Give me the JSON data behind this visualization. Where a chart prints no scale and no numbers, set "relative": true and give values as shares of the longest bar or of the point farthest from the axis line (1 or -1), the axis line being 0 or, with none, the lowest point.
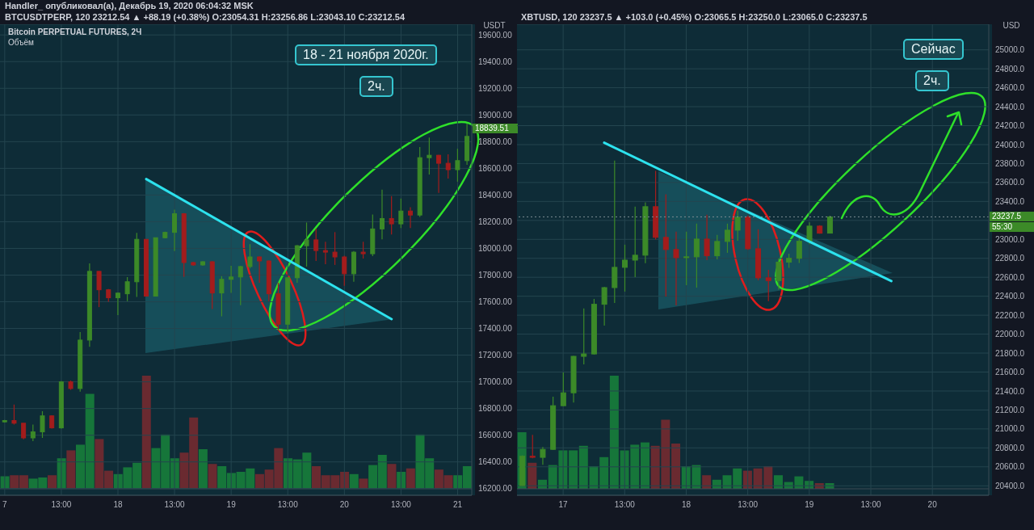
{
  "chart_data": [
    {
      "type": "candlestick",
      "title": "Bitcoin PERPETUAL FUTURES, 2Ч",
      "ylabel": "USDT",
      "categories": [
        "7",
        null,
        null,
        null,
        null,
        null,
        "13:00",
        null,
        null,
        null,
        null,
        null,
        "18",
        null,
        null,
        null,
        null,
        null,
        "13:00",
        null,
        null,
        null,
        null,
        null,
        "19",
        null,
        null,
        null,
        null,
        null,
        "13:00",
        null,
        null,
        null,
        null,
        null,
        "20",
        null,
        null,
        null,
        null,
        null,
        "13:00",
        null,
        null,
        null,
        null,
        null,
        "21",
        null
      ],
      "series": [
        {
          "type": "candlestick",
          "ohlc": [
            [
              16700,
              16715,
              16695,
              16710
            ],
            [
              16710,
              16830,
              16680,
              16690
            ],
            [
              16690,
              16690,
              16570,
              16580
            ],
            [
              16580,
              16680,
              16555,
              16625
            ],
            [
              16625,
              16780,
              16580,
              16745
            ],
            [
              16745,
              16750,
              16650,
              16655
            ],
            [
              16655,
              17005,
              16650,
              17000
            ],
            [
              17000,
              17010,
              16940,
              16950
            ],
            [
              16950,
              17373,
              16927,
              17313
            ],
            [
              17313,
              17888,
              17263,
              17828
            ],
            [
              17828,
              17830,
              17560,
              17690
            ],
            [
              17690,
              17695,
              17600,
              17630
            ],
            [
              17630,
              17670,
              17500,
              17665
            ],
            [
              17660,
              17785,
              17605,
              17750
            ],
            [
              17750,
              18116,
              17636,
              18068
            ],
            [
              18068,
              18070,
              17640,
              17642
            ],
            [
              17642,
              18080,
              17640,
              18080
            ],
            [
              18080,
              18125,
              18075,
              18120
            ],
            [
              18120,
              18290,
              17980,
              18260
            ],
            [
              18260,
              18265,
              17786,
              17894
            ],
            [
              17894,
              17900,
              17870,
              17876
            ],
            [
              17876,
              17905,
              17870,
              17900
            ],
            [
              17900,
              17905,
              17545,
              17666
            ],
            [
              17666,
              17792,
              17491,
              17768
            ],
            [
              17768,
              17870,
              17666,
              17786
            ],
            [
              17786,
              17870,
              17575,
              17864
            ],
            [
              17864,
              18032,
              17850,
              17936
            ],
            [
              17936,
              17940,
              17743,
              17906
            ],
            [
              17906,
              17910,
              17605,
              17660
            ],
            [
              17660,
              17743,
              17383,
              17432
            ],
            [
              17432,
              17785,
              17365,
              17780
            ],
            [
              17780,
              18025,
              17743,
              18020
            ],
            [
              18020,
              18194,
              17864,
              18064
            ],
            [
              18064,
              18146,
              17906,
              17984
            ],
            [
              17984,
              18050,
              17882,
              17972
            ],
            [
              17972,
              18122,
              17876,
              17936
            ],
            [
              17936,
              17945,
              17720,
              17810
            ],
            [
              17810,
              17980,
              17750,
              17972
            ],
            [
              17972,
              18050,
              17924,
              17960
            ],
            [
              17960,
              18254,
              17942,
              18146
            ],
            [
              18146,
              18440,
              18068,
              18224
            ],
            [
              18224,
              18392,
              18104,
              18184
            ],
            [
              18184,
              18374,
              18152,
              18280
            ],
            [
              18280,
              18308,
              18152,
              18250
            ],
            [
              18250,
              18759,
              18236,
              18680
            ],
            [
              18680,
              18831,
              18554,
              18698
            ],
            [
              18698,
              18700,
              18416,
              18638
            ],
            [
              18638,
              18705,
              18524,
              18590
            ],
            [
              18590,
              18747,
              18500,
              18658
            ],
            [
              18658,
              18935,
              18627,
              18839.51
            ]
          ],
          "colors": [
            "#3c8a28",
            "#a31c1c",
            "#a31c1c",
            "#3c8a28",
            "#3c8a28",
            "#a31c1c",
            "#3c8a28",
            "#a31c1c",
            "#3c8a28",
            "#3c8a28",
            "#a31c1c",
            "#a31c1c",
            "#3c8a28",
            "#3c8a28",
            "#3c8a28",
            "#a31c1c",
            "#3c8a28",
            "#3c8a28",
            "#3c8a28",
            "#a31c1c",
            "#a31c1c",
            "#3c8a28",
            "#a31c1c",
            "#3c8a28",
            "#3c8a28",
            "#3c8a28",
            "#3c8a28",
            "#a31c1c",
            "#a31c1c",
            "#a31c1c",
            "#3c8a28",
            "#3c8a28",
            "#3c8a28",
            "#a31c1c",
            "#a31c1c",
            "#a31c1c",
            "#a31c1c",
            "#3c8a28",
            "#a31c1c",
            "#3c8a28",
            "#3c8a28",
            "#a31c1c",
            "#3c8a28",
            "#a31c1c",
            "#3c8a28",
            "#3c8a28",
            "#a31c1c",
            "#a31c1c",
            "#3c8a28",
            "#3c8a28"
          ]
        },
        {
          "type": "line",
          "color": "#2de2ee",
          "values": [
            null,
            null,
            null,
            null,
            null,
            null,
            null,
            null,
            null,
            null,
            null,
            null,
            null,
            null,
            null,
            18520,
            null,
            null,
            null,
            null,
            null,
            null,
            null,
            null,
            null,
            null,
            null,
            null,
            null,
            null,
            null,
            null,
            null,
            null,
            null,
            null,
            null,
            null,
            null,
            null,
            null,
            17470,
            null,
            null,
            null,
            null,
            null,
            null,
            null,
            null
          ]
        }
      ],
      "ylim": [
        16150,
        19680
      ],
      "yticks": [
        {
          "value": 16200,
          "label": "16200.00"
        },
        {
          "value": 16400,
          "label": "16400.00"
        },
        {
          "value": 16600,
          "label": "16600.00"
        },
        {
          "value": 16800,
          "label": "16800.00"
        },
        {
          "value": 17000,
          "label": "17000.00"
        },
        {
          "value": 17200,
          "label": "17200.00"
        },
        {
          "value": 17400,
          "label": "17400.00"
        },
        {
          "value": 17600,
          "label": "17600.00"
        },
        {
          "value": 17800,
          "label": "17800.00"
        },
        {
          "value": 18000,
          "label": "18000.00"
        },
        {
          "value": 18200,
          "label": "18200.00"
        },
        {
          "value": 18400,
          "label": "18400.00"
        },
        {
          "value": 18600,
          "label": "18600.00"
        },
        {
          "value": 18800,
          "label": "18800.00"
        },
        {
          "value": 19000,
          "label": "19000.00"
        },
        {
          "value": 19200,
          "label": "19200.00"
        },
        {
          "value": 19400,
          "label": "19400.00"
        },
        {
          "value": 19600,
          "label": "19600.00"
        }
      ],
      "grid": true,
      "annotations": [
        "Handler_ опубликовал(а), Декабрь 19, 2020 06:04:32 MSK",
        "BTCUSDTPERP, 120  23212.54 ▲ +88.19 (+0.38%) O:23054.31 H:23256.86 L:23043.10 C:23212.54",
        "18 - 21 ноября 2020г.",
        "2ч.",
        "18839.51"
      ]
    },
    {
      "type": "bar",
      "relative": true,
      "title": "Объём",
      "categories": [
        null,
        null,
        null,
        null,
        null,
        null,
        null,
        null,
        null,
        null,
        null,
        null,
        null,
        null,
        null,
        null,
        null,
        null,
        null,
        null,
        null,
        null,
        null,
        null,
        null,
        null,
        null,
        null,
        null,
        null,
        null,
        null,
        null,
        null,
        null,
        null,
        null,
        null,
        null,
        null,
        null,
        null,
        null,
        null,
        null,
        null,
        null,
        null,
        null,
        null
      ],
      "values": [
        0.11,
        0.12,
        0.12,
        0.09,
        0.1,
        0.12,
        0.27,
        0.34,
        0.39,
        0.84,
        0.44,
        0.16,
        0.13,
        0.19,
        0.23,
        1,
        0.36,
        0.48,
        0.27,
        0.32,
        0.63,
        0.35,
        0.22,
        0.2,
        0.14,
        0.15,
        0.18,
        0.13,
        0.17,
        0.36,
        0.27,
        0.26,
        0.32,
        0.2,
        0.12,
        0.12,
        0.15,
        0.13,
        0.09,
        0.21,
        0.3,
        0.22,
        0.15,
        0.18,
        0.48,
        0.27,
        0.17,
        0.12,
        0.12,
        0.2
      ],
      "colors": [
        "#16763a",
        "#6a2a30",
        "#6a2a30",
        "#16763a",
        "#16763a",
        "#6a2a30",
        "#16763a",
        "#6a2a30",
        "#16763a",
        "#16763a",
        "#6a2a30",
        "#6a2a30",
        "#16763a",
        "#16763a",
        "#16763a",
        "#6a2a30",
        "#16763a",
        "#16763a",
        "#16763a",
        "#6a2a30",
        "#6a2a30",
        "#16763a",
        "#6a2a30",
        "#16763a",
        "#16763a",
        "#16763a",
        "#16763a",
        "#6a2a30",
        "#6a2a30",
        "#6a2a30",
        "#16763a",
        "#16763a",
        "#16763a",
        "#6a2a30",
        "#6a2a30",
        "#6a2a30",
        "#6a2a30",
        "#16763a",
        "#6a2a30",
        "#16763a",
        "#16763a",
        "#6a2a30",
        "#16763a",
        "#6a2a30",
        "#16763a",
        "#16763a",
        "#6a2a30",
        "#6a2a30",
        "#16763a",
        "#16763a"
      ]
    },
    {
      "type": "candlestick",
      "title": "XBTUSD, 120  23237.5 ▲ +103.0 (+0.45%) O:23065.5 H:23250.0 L:23065.0 C:23237.5",
      "ylabel": "USD",
      "categories": [
        null,
        null,
        null,
        null,
        "17",
        null,
        null,
        null,
        null,
        null,
        "13:00",
        null,
        null,
        null,
        null,
        null,
        "18",
        null,
        null,
        null,
        null,
        null,
        "13:00",
        null,
        null,
        null,
        null,
        null,
        "19",
        null,
        null,
        null,
        null,
        null,
        "13:00",
        null,
        null,
        null,
        null,
        null,
        "20",
        null,
        null,
        null,
        null,
        null
      ],
      "series": [
        {
          "type": "candlestick",
          "ohlc": [
            [
              20402,
              20720,
              20400,
              20712
            ],
            [
              20712,
              20938,
              20690,
              20700
            ],
            [
              20700,
              20810,
              20622,
              20784
            ],
            [
              20784,
              21339,
              20780,
              21245
            ],
            [
              21245,
              21595,
              21240,
              21381
            ],
            [
              21381,
              21770,
              21279,
              21766
            ],
            [
              21766,
              22272,
              21680,
              21791
            ],
            [
              21791,
              22372,
              21785,
              22315
            ],
            [
              22315,
              22500,
              22090,
              22491
            ],
            [
              22491,
              23832,
              22329,
              22705
            ],
            [
              22705,
              22944,
              22449,
              22781
            ],
            [
              22781,
              23345,
              22602,
              22833
            ],
            [
              22833,
              23390,
              22748,
              23345
            ],
            [
              23345,
              23723,
              23000,
              23021
            ],
            [
              23021,
              23476,
              22397,
              22893
            ],
            [
              22893,
              23081,
              22304,
              22807
            ],
            [
              22807,
              23081,
              22517,
              22816
            ],
            [
              22816,
              23166,
              22491,
              23003
            ],
            [
              23003,
              23260,
              22781,
              22827
            ],
            [
              22827,
              23047,
              22790,
              22978
            ],
            [
              22978,
              23166,
              22858,
              23097
            ],
            [
              23097,
              23302,
              22986,
              23234
            ],
            [
              23234,
              23251,
              22890,
              22901
            ],
            [
              22901,
              23106,
              22568,
              22594
            ],
            [
              22594,
              22679,
              22349,
              22565
            ],
            [
              22565,
              22800,
              22470,
              22760
            ],
            [
              22760,
              22850,
              22700,
              22800
            ],
            [
              22800,
              23050,
              22750,
              22980
            ],
            [
              22980,
              23180,
              22950,
              23140
            ],
            [
              23140,
              23150,
              23060,
              23065
            ],
            [
              23065.5,
              23250,
              23065,
              23237.5
            ],
            null,
            null,
            null,
            null,
            null,
            null,
            null,
            null,
            null,
            null,
            null,
            null,
            null,
            null,
            null
          ],
          "colors": [
            "#3c8a28",
            "#a31c1c",
            "#3c8a28",
            "#3c8a28",
            "#3c8a28",
            "#3c8a28",
            "#3c8a28",
            "#3c8a28",
            "#3c8a28",
            "#3c8a28",
            "#3c8a28",
            "#3c8a28",
            "#3c8a28",
            "#a31c1c",
            "#a31c1c",
            "#a31c1c",
            "#3c8a28",
            "#3c8a28",
            "#a31c1c",
            "#3c8a28",
            "#3c8a28",
            "#3c8a28",
            "#a31c1c",
            "#a31c1c",
            "#a31c1c",
            "#3c8a28",
            "#3c8a28",
            "#3c8a28",
            "#3c8a28",
            "#a31c1c",
            "#3c8a28",
            null,
            null,
            null,
            null,
            null,
            null,
            null,
            null,
            null,
            null,
            null,
            null,
            null,
            null,
            null
          ]
        },
        {
          "type": "line",
          "color": "#2de2ee",
          "values": [
            null,
            null,
            null,
            null,
            null,
            null,
            null,
            null,
            24020,
            null,
            null,
            null,
            null,
            null,
            null,
            null,
            null,
            null,
            null,
            null,
            null,
            null,
            null,
            null,
            null,
            null,
            null,
            null,
            null,
            null,
            null,
            null,
            null,
            null,
            null,
            null,
            22560,
            null,
            null,
            null,
            null,
            null,
            null,
            null,
            null,
            null
          ]
        }
      ],
      "ylim": [
        20300,
        25270
      ],
      "yticks": [
        {
          "value": 20400,
          "label": "20400.0"
        },
        {
          "value": 20600,
          "label": "20600.0"
        },
        {
          "value": 20800,
          "label": "20800.0"
        },
        {
          "value": 21000,
          "label": "21000.0"
        },
        {
          "value": 21200,
          "label": "21200.0"
        },
        {
          "value": 21400,
          "label": "21400.0"
        },
        {
          "value": 21600,
          "label": "21600.0"
        },
        {
          "value": 21800,
          "label": "21800.0"
        },
        {
          "value": 22000,
          "label": "22000.0"
        },
        {
          "value": 22200,
          "label": "22200.0"
        },
        {
          "value": 22400,
          "label": "22400.0"
        },
        {
          "value": 22600,
          "label": "22600.0"
        },
        {
          "value": 22800,
          "label": "22800.0"
        },
        {
          "value": 23000,
          "label": "23000.0"
        },
        {
          "value": 23200,
          "label": null
        },
        {
          "value": 23400,
          "label": "23400.0"
        },
        {
          "value": 23600,
          "label": "23600.0"
        },
        {
          "value": 23800,
          "label": "23800.0"
        },
        {
          "value": 24000,
          "label": "24000.0"
        },
        {
          "value": 24200,
          "label": "24200.0"
        },
        {
          "value": 24400,
          "label": "24400.0"
        },
        {
          "value": 24600,
          "label": "24600.0"
        },
        {
          "value": 24800,
          "label": "24800.0"
        },
        {
          "value": 25000,
          "label": "25000.0"
        }
      ],
      "grid": true,
      "ref_lines": [
        {
          "axis": "y",
          "value": 23237.5,
          "color": "#7d8c93",
          "line_style": "dotted"
        }
      ],
      "annotations": [
        "Сейчас",
        "2ч.",
        "23237.5",
        "55:30"
      ]
    },
    {
      "type": "bar",
      "relative": true,
      "categories": [
        null,
        null,
        null,
        null,
        null,
        null,
        null,
        null,
        null,
        null,
        null,
        null,
        null,
        null,
        null,
        null,
        null,
        null,
        null,
        null,
        null,
        null,
        null,
        null,
        null,
        null,
        null,
        null,
        null,
        null,
        null,
        null,
        null,
        null,
        null,
        null,
        null,
        null,
        null,
        null,
        null,
        null,
        null,
        null,
        null,
        null
      ],
      "values": [
        0.5,
        0.23,
        0.08,
        0.21,
        0.34,
        0.34,
        0.38,
        0.2,
        0.28,
        1,
        0.34,
        0.39,
        0.41,
        0.38,
        0.61,
        0.4,
        0.2,
        0.21,
        0.12,
        0.08,
        0.12,
        0.18,
        0.16,
        0.18,
        0.2,
        0.12,
        0.06,
        0.11,
        0.07,
        0.05,
        0.05,
        null,
        null,
        null,
        null,
        null,
        null,
        null,
        null,
        null,
        null,
        null,
        null,
        null,
        null,
        null
      ],
      "colors": [
        "#16763a",
        "#6a2a30",
        "#16763a",
        "#16763a",
        "#16763a",
        "#16763a",
        "#16763a",
        "#16763a",
        "#16763a",
        "#16763a",
        "#16763a",
        "#16763a",
        "#16763a",
        "#6a2a30",
        "#6a2a30",
        "#6a2a30",
        "#16763a",
        "#16763a",
        "#6a2a30",
        "#16763a",
        "#16763a",
        "#16763a",
        "#6a2a30",
        "#6a2a30",
        "#6a2a30",
        "#16763a",
        "#16763a",
        "#16763a",
        "#16763a",
        "#6a2a30",
        "#16763a",
        null,
        null,
        null,
        null,
        null,
        null,
        null,
        null,
        null,
        null,
        null,
        null,
        null,
        null,
        null
      ]
    }
  ]
}
